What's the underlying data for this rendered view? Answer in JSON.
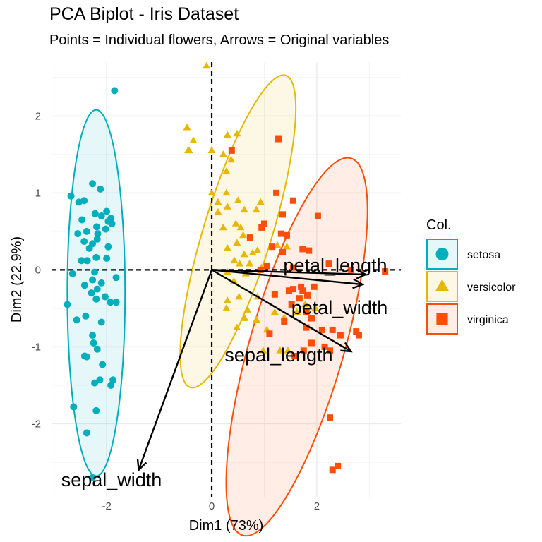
{
  "title": "PCA Biplot - Iris Dataset",
  "subtitle": "Points = Individual flowers, Arrows = Original variables",
  "chart_data": {
    "type": "scatter",
    "title": "PCA Biplot - Iris Dataset",
    "subtitle": "Points = Individual flowers, Arrows = Original variables",
    "xlabel": "Dim1 (73%)",
    "ylabel": "Dim2 (22.9%)",
    "xlim": [
      -3.05,
      3.6
    ],
    "ylim": [
      -2.95,
      2.7
    ],
    "x_ticks": [
      -2,
      0,
      2
    ],
    "y_ticks": [
      -2,
      -1,
      0,
      1,
      2
    ],
    "x_tick_labels": [
      "-2",
      "0",
      "2"
    ],
    "y_tick_labels": [
      "-2",
      "-1",
      "0",
      "1",
      "2"
    ],
    "grid": true,
    "reference_lines": {
      "x": 0,
      "y": 0,
      "style": "dashed"
    },
    "legend": {
      "title": "Col.",
      "position": "right"
    },
    "series": [
      {
        "name": "setosa",
        "color": "#00AFBB",
        "marker": "circle",
        "ellipse": {
          "center": [
            -2.2,
            -0.3
          ],
          "semi_axis_x": 0.55,
          "semi_axis_y": 2.38,
          "rotation_deg": 0
        },
        "points": [
          [
            -1.85,
            2.33
          ],
          [
            -2.27,
            1.12
          ],
          [
            -2.68,
            0.96
          ],
          [
            -2.12,
            1.05
          ],
          [
            -2.43,
            0.9
          ],
          [
            -2.53,
            0.88
          ],
          [
            -2.22,
            0.73
          ],
          [
            -2.0,
            0.76
          ],
          [
            -2.1,
            0.7
          ],
          [
            -2.47,
            0.65
          ],
          [
            -1.97,
            0.63
          ],
          [
            -1.92,
            0.67
          ],
          [
            -2.19,
            0.56
          ],
          [
            -2.02,
            0.53
          ],
          [
            -1.9,
            0.6
          ],
          [
            -2.55,
            0.47
          ],
          [
            -2.38,
            0.5
          ],
          [
            -2.17,
            0.47
          ],
          [
            -2.43,
            0.37
          ],
          [
            -2.27,
            0.34
          ],
          [
            -2.33,
            0.28
          ],
          [
            -1.97,
            0.3
          ],
          [
            -2.18,
            0.4
          ],
          [
            -2.48,
            0.12
          ],
          [
            -2.2,
            0.16
          ],
          [
            -2.37,
            0.12
          ],
          [
            -2.0,
            0.15
          ],
          [
            -2.65,
            -0.05
          ],
          [
            -2.23,
            -0.03
          ],
          [
            -1.82,
            -0.1
          ],
          [
            -2.27,
            -0.13
          ],
          [
            -2.1,
            -0.17
          ],
          [
            -2.42,
            -0.2
          ],
          [
            -2.18,
            -0.25
          ],
          [
            -2.29,
            -0.3
          ],
          [
            -2.75,
            -0.45
          ],
          [
            -2.2,
            -0.38
          ],
          [
            -2.03,
            -0.35
          ],
          [
            -1.93,
            -0.42
          ],
          [
            -1.82,
            -0.42
          ],
          [
            -2.4,
            -0.6
          ],
          [
            -2.57,
            -0.65
          ],
          [
            -2.1,
            -0.68
          ],
          [
            -2.27,
            -0.85
          ],
          [
            -2.18,
            -1.03
          ],
          [
            -2.25,
            -0.95
          ],
          [
            -2.42,
            -1.12
          ],
          [
            -2.38,
            -1.13
          ],
          [
            -2.08,
            -1.23
          ],
          [
            -1.88,
            -1.43
          ],
          [
            -2.13,
            -1.43
          ],
          [
            -2.23,
            -1.47
          ],
          [
            -1.92,
            -1.5
          ],
          [
            -2.63,
            -1.78
          ],
          [
            -2.2,
            -1.83
          ],
          [
            -2.38,
            -2.12
          ],
          [
            -2.27,
            -2.7
          ]
        ]
      },
      {
        "name": "versicolor",
        "color": "#E7B800",
        "marker": "triangle",
        "ellipse": {
          "center": [
            0.5,
            0.5
          ],
          "semi_axis_x": 0.65,
          "semi_axis_y": 2.12,
          "rotation_deg": 17
        },
        "points": [
          [
            -0.1,
            2.65
          ],
          [
            -0.47,
            1.85
          ],
          [
            -0.35,
            1.68
          ],
          [
            -0.45,
            1.55
          ],
          [
            -0.43,
            1.55
          ],
          [
            0.3,
            1.75
          ],
          [
            0.48,
            1.77
          ],
          [
            0.0,
            1.55
          ],
          [
            0.22,
            1.5
          ],
          [
            0.37,
            1.43
          ],
          [
            0.28,
            1.28
          ],
          [
            0.0,
            1.0
          ],
          [
            0.28,
            1.0
          ],
          [
            0.12,
            0.88
          ],
          [
            0.5,
            0.9
          ],
          [
            0.3,
            0.82
          ],
          [
            0.62,
            0.78
          ],
          [
            0.12,
            0.75
          ],
          [
            0.85,
            0.78
          ],
          [
            0.93,
            0.88
          ],
          [
            0.22,
            0.55
          ],
          [
            0.46,
            0.6
          ],
          [
            0.55,
            0.55
          ],
          [
            0.6,
            0.45
          ],
          [
            0.48,
            0.35
          ],
          [
            0.3,
            0.28
          ],
          [
            0.62,
            0.2
          ],
          [
            0.78,
            0.22
          ],
          [
            0.87,
            0.25
          ],
          [
            0.43,
            0.12
          ],
          [
            0.53,
            0.08
          ],
          [
            0.72,
            0.08
          ],
          [
            0.65,
            -0.05
          ],
          [
            0.95,
            0.03
          ],
          [
            0.3,
            -0.03
          ],
          [
            0.42,
            -0.15
          ],
          [
            0.87,
            -0.35
          ],
          [
            0.52,
            -0.35
          ],
          [
            0.3,
            -0.4
          ],
          [
            0.28,
            -0.5
          ],
          [
            0.68,
            -0.52
          ],
          [
            1.2,
            -0.55
          ],
          [
            0.63,
            -0.63
          ],
          [
            0.85,
            -0.65
          ],
          [
            1.38,
            -0.62
          ],
          [
            0.48,
            -0.75
          ],
          [
            1.05,
            -0.78
          ],
          [
            0.98,
            -1.05
          ],
          [
            1.3,
            -1.05
          ],
          [
            1.45,
            -1.05
          ],
          [
            1.62,
            -0.55
          ],
          [
            1.78,
            -0.45
          ],
          [
            1.97,
            -0.5
          ],
          [
            1.25,
            0.32
          ],
          [
            1.43,
            0.3
          ]
        ]
      },
      {
        "name": "virginica",
        "color": "#FC4E07",
        "marker": "square",
        "ellipse": {
          "center": [
            1.62,
            -1.0
          ],
          "semi_axis_x": 0.9,
          "semi_axis_y": 2.55,
          "rotation_deg": 16
        },
        "points": [
          [
            1.27,
            1.7
          ],
          [
            0.38,
            1.55
          ],
          [
            1.23,
            1.0
          ],
          [
            1.55,
            0.9
          ],
          [
            1.35,
            0.72
          ],
          [
            2.02,
            0.7
          ],
          [
            1.0,
            0.6
          ],
          [
            0.95,
            0.55
          ],
          [
            1.32,
            0.47
          ],
          [
            1.43,
            0.45
          ],
          [
            0.73,
            0.42
          ],
          [
            1.15,
            0.3
          ],
          [
            1.35,
            0.23
          ],
          [
            1.73,
            0.27
          ],
          [
            1.85,
            0.25
          ],
          [
            1.05,
            0.05
          ],
          [
            1.55,
            0.03
          ],
          [
            0.93,
            0.0
          ],
          [
            2.23,
            0.08
          ],
          [
            2.65,
            0.0
          ],
          [
            3.3,
            -0.02
          ],
          [
            1.55,
            -0.25
          ],
          [
            1.7,
            -0.22
          ],
          [
            1.73,
            -0.27
          ],
          [
            1.82,
            -0.33
          ],
          [
            1.67,
            -0.37
          ],
          [
            1.95,
            -0.22
          ],
          [
            1.47,
            -0.27
          ],
          [
            1.2,
            -0.32
          ],
          [
            1.52,
            -0.45
          ],
          [
            1.8,
            -0.55
          ],
          [
            1.9,
            -0.63
          ],
          [
            1.38,
            -0.67
          ],
          [
            1.8,
            -0.75
          ],
          [
            1.1,
            -0.83
          ],
          [
            2.1,
            -0.78
          ],
          [
            1.9,
            -0.95
          ],
          [
            1.75,
            -1.05
          ],
          [
            2.15,
            -1.0
          ],
          [
            2.3,
            -0.78
          ],
          [
            2.75,
            -0.8
          ],
          [
            2.8,
            -0.85
          ],
          [
            2.45,
            -0.85
          ],
          [
            2.25,
            -1.05
          ],
          [
            1.58,
            -1.12
          ],
          [
            2.25,
            -1.92
          ],
          [
            2.4,
            -2.55
          ],
          [
            2.3,
            -2.6
          ]
        ]
      }
    ],
    "variables": [
      {
        "name": "petal_length",
        "end": [
          2.93,
          -0.06
        ]
      },
      {
        "name": "petal_width",
        "end": [
          2.87,
          -0.19
        ]
      },
      {
        "name": "sepal_length",
        "end": [
          2.65,
          -1.06
        ]
      },
      {
        "name": "sepal_width",
        "end": [
          -1.39,
          -2.6
        ]
      }
    ]
  }
}
